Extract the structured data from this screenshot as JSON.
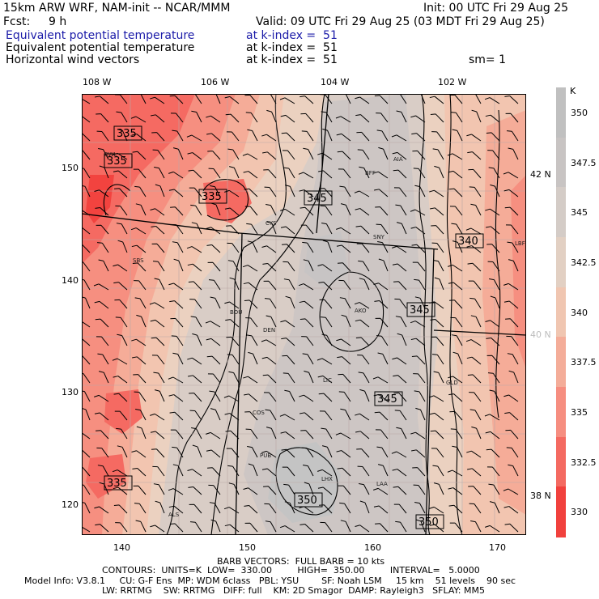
{
  "header": {
    "model_line": "15km ARW WRF, NAM-init -- NCAR/MMM",
    "init_line": "Init: 00 UTC Fri 29 Aug 25",
    "fcst_label": "Fcst:",
    "fcst_value": "9 h",
    "valid_line": "Valid: 09 UTC Fri 29 Aug 25 (03 MDT Fri 29 Aug 25)",
    "fields": [
      {
        "name": "Equivalent potential temperature",
        "level": "at k-index =  51",
        "extra": ""
      },
      {
        "name": "Equivalent potential temperature",
        "level": "at k-index =  51",
        "extra": ""
      },
      {
        "name": "Horizontal wind vectors",
        "level": "at k-index =  51",
        "extra": "sm= 1"
      }
    ]
  },
  "map": {
    "top_lon_labels": [
      "108 W",
      "106 W",
      "104 W",
      "102 W"
    ],
    "bottom_grid_labels": [
      "140",
      "150",
      "160",
      "170"
    ],
    "left_grid_labels": [
      "150",
      "140",
      "130",
      "120"
    ],
    "right_lat_labels": [
      "42 N",
      "40 N",
      "38 N"
    ],
    "contour_labels": [
      "335",
      "335",
      "335",
      "345",
      "340",
      "345",
      "345",
      "350",
      "350",
      "335"
    ],
    "stations": [
      "RWL",
      "BFF",
      "AIA",
      "CYS",
      "SNY",
      "LBF",
      "SBS",
      "BOU",
      "AKO",
      "DEN",
      "LIC",
      "GLD",
      "COS",
      "PUB",
      "LHX",
      "LAA",
      "ALS"
    ],
    "colors": {
      "c330": "#f2433f",
      "c332": "#f56a62",
      "c335": "#f68f80",
      "c337": "#f5ac98",
      "c340": "#f2c5b0",
      "c342": "#ebd1c0",
      "c345": "#d9cdc6",
      "c347": "#cdc6c4",
      "c350": "#c4c4c4"
    }
  },
  "colorbar": {
    "unit": "K",
    "labels": [
      "350",
      "347.5",
      "345",
      "342.5",
      "340",
      "337.5",
      "335",
      "332.5",
      "330"
    ],
    "colors": [
      "#c0c0c0",
      "#c8c4c3",
      "#d4ccc7",
      "#e2d0c3",
      "#f0c6b1",
      "#f4ad99",
      "#f68e80",
      "#f46a61",
      "#f1413d"
    ]
  },
  "footer": {
    "barb_line": "BARB VECTORS:  FULL BARB = 10 kts",
    "contours_line": "CONTOURS:  UNITS=K  LOW=  330.00         HIGH=  350.00         INTERVAL=   5.0000",
    "model_info_line": "Model Info: V3.8.1     CU: G-F Ens  MP: WDM 6class   PBL: YSU        SF: Noah LSM     15 km    51 levels    90 sec",
    "physics_line": "LW: RRTMG    SW: RRTMG   DIFF: full    KM: 2D Smagor  DAMP: Rayleigh3   SFLAY: MM5"
  }
}
